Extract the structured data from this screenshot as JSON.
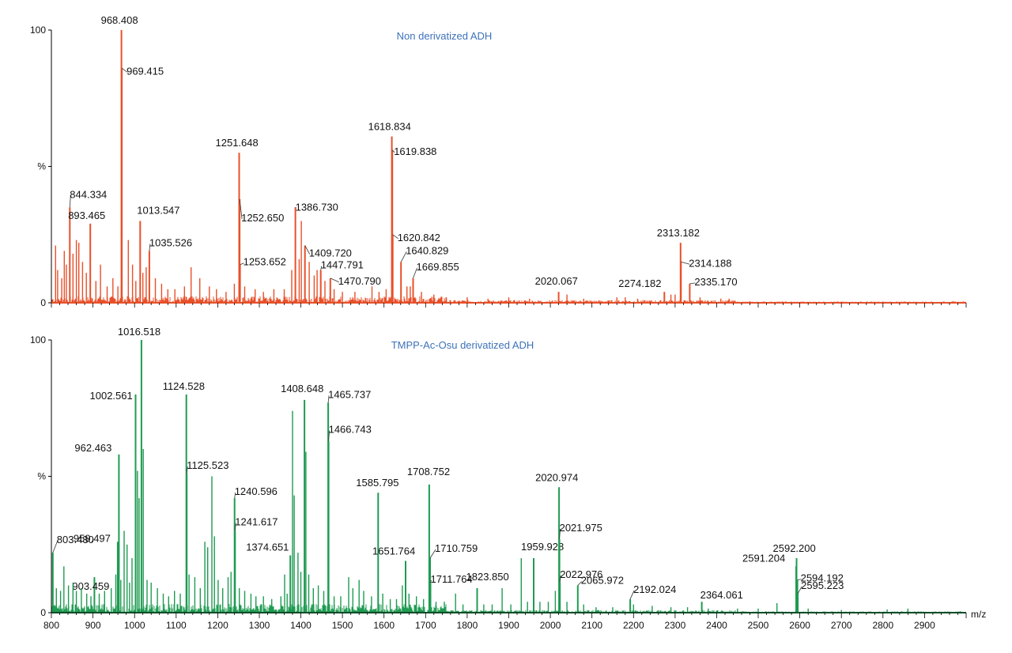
{
  "chart_data": {
    "type": "bar",
    "xlabel": "m/z",
    "xlim": [
      800,
      3000
    ],
    "x_ticks": [
      "800",
      "900",
      "1000",
      "1100",
      "1200",
      "1300",
      "1400",
      "1500",
      "1600",
      "1700",
      "1800",
      "1900",
      "2000",
      "2100",
      "2200",
      "2300",
      "2400",
      "2500",
      "2600",
      "2700",
      "2800",
      "2900"
    ],
    "colors": {
      "top": "#e8502a",
      "bottom": "#1f9b52",
      "title": "#3d72b8"
    },
    "panels": [
      {
        "title": "Non derivatized ADH",
        "ylim": [
          0,
          100
        ],
        "y_ticks": [
          "100",
          "%",
          "0"
        ],
        "peaks": [
          {
            "mz": 968.408,
            "intensity": 100,
            "label": "968.408"
          },
          {
            "mz": 969.415,
            "intensity": 86,
            "label": "969.415"
          },
          {
            "mz": 1251.648,
            "intensity": 55,
            "label": "1251.648"
          },
          {
            "mz": 1252.65,
            "intensity": 38,
            "label": "1252.650"
          },
          {
            "mz": 1253.652,
            "intensity": 14,
            "label": "1253.652"
          },
          {
            "mz": 1386.73,
            "intensity": 35,
            "label": "1386.730"
          },
          {
            "mz": 1409.72,
            "intensity": 21,
            "label": "1409.720"
          },
          {
            "mz": 1447.791,
            "intensity": 12,
            "label": "1447.791"
          },
          {
            "mz": 1470.79,
            "intensity": 9,
            "label": "1470.790"
          },
          {
            "mz": 1618.834,
            "intensity": 61,
            "label": "1618.834"
          },
          {
            "mz": 1619.838,
            "intensity": 56,
            "label": "1619.838"
          },
          {
            "mz": 1620.842,
            "intensity": 25,
            "label": "1620.842"
          },
          {
            "mz": 1640.829,
            "intensity": 15,
            "label": "1640.829"
          },
          {
            "mz": 1669.855,
            "intensity": 9,
            "label": "1669.855"
          },
          {
            "mz": 844.334,
            "intensity": 35,
            "label": "844.334"
          },
          {
            "mz": 893.465,
            "intensity": 29,
            "label": "893.465"
          },
          {
            "mz": 1013.547,
            "intensity": 30,
            "label": "1013.547"
          },
          {
            "mz": 1035.526,
            "intensity": 19,
            "label": "1035.526"
          },
          {
            "mz": 2020.067,
            "intensity": 4,
            "label": "2020.067"
          },
          {
            "mz": 2274.182,
            "intensity": 4,
            "label": "2274.182"
          },
          {
            "mz": 2313.182,
            "intensity": 22,
            "label": "2313.182"
          },
          {
            "mz": 2314.188,
            "intensity": 15,
            "label": "2314.188"
          },
          {
            "mz": 2335.17,
            "intensity": 7,
            "label": "2335.170"
          },
          {
            "mz": 810,
            "intensity": 21
          },
          {
            "mz": 815,
            "intensity": 12
          },
          {
            "mz": 825,
            "intensity": 9
          },
          {
            "mz": 831,
            "intensity": 19
          },
          {
            "mz": 836,
            "intensity": 14
          },
          {
            "mz": 852,
            "intensity": 18
          },
          {
            "mz": 860,
            "intensity": 23
          },
          {
            "mz": 866,
            "intensity": 22
          },
          {
            "mz": 875,
            "intensity": 15
          },
          {
            "mz": 884,
            "intensity": 11
          },
          {
            "mz": 907,
            "intensity": 8
          },
          {
            "mz": 918,
            "intensity": 14
          },
          {
            "mz": 934,
            "intensity": 6
          },
          {
            "mz": 948,
            "intensity": 9
          },
          {
            "mz": 960,
            "intensity": 6
          },
          {
            "mz": 985,
            "intensity": 23
          },
          {
            "mz": 995,
            "intensity": 14
          },
          {
            "mz": 1003,
            "intensity": 8
          },
          {
            "mz": 1020,
            "intensity": 11
          },
          {
            "mz": 1028,
            "intensity": 13
          },
          {
            "mz": 1050,
            "intensity": 9
          },
          {
            "mz": 1065,
            "intensity": 7
          },
          {
            "mz": 1080,
            "intensity": 5
          },
          {
            "mz": 1097,
            "intensity": 5
          },
          {
            "mz": 1120,
            "intensity": 6
          },
          {
            "mz": 1136,
            "intensity": 13
          },
          {
            "mz": 1157,
            "intensity": 9
          },
          {
            "mz": 1180,
            "intensity": 6
          },
          {
            "mz": 1197,
            "intensity": 5
          },
          {
            "mz": 1220,
            "intensity": 4
          },
          {
            "mz": 1240,
            "intensity": 7
          },
          {
            "mz": 1265,
            "intensity": 6
          },
          {
            "mz": 1290,
            "intensity": 5
          },
          {
            "mz": 1310,
            "intensity": 4
          },
          {
            "mz": 1335,
            "intensity": 5
          },
          {
            "mz": 1360,
            "intensity": 5
          },
          {
            "mz": 1378,
            "intensity": 12
          },
          {
            "mz": 1396,
            "intensity": 16
          },
          {
            "mz": 1401,
            "intensity": 30
          },
          {
            "mz": 1420,
            "intensity": 15
          },
          {
            "mz": 1432,
            "intensity": 10
          },
          {
            "mz": 1439,
            "intensity": 12
          },
          {
            "mz": 1458,
            "intensity": 8
          },
          {
            "mz": 1480,
            "intensity": 5
          },
          {
            "mz": 1500,
            "intensity": 4
          },
          {
            "mz": 1530,
            "intensity": 4
          },
          {
            "mz": 1571,
            "intensity": 6
          },
          {
            "mz": 1588,
            "intensity": 4
          },
          {
            "mz": 1605,
            "intensity": 5
          },
          {
            "mz": 1655,
            "intensity": 6
          },
          {
            "mz": 1663,
            "intensity": 6
          },
          {
            "mz": 1690,
            "intensity": 4
          },
          {
            "mz": 1720,
            "intensity": 3
          },
          {
            "mz": 1750,
            "intensity": 2
          },
          {
            "mz": 1800,
            "intensity": 2
          },
          {
            "mz": 1850,
            "intensity": 1.5
          },
          {
            "mz": 1900,
            "intensity": 2
          },
          {
            "mz": 1950,
            "intensity": 1.5
          },
          {
            "mz": 2040,
            "intensity": 3
          },
          {
            "mz": 2080,
            "intensity": 1.5
          },
          {
            "mz": 2160,
            "intensity": 2
          },
          {
            "mz": 2180,
            "intensity": 2
          },
          {
            "mz": 2210,
            "intensity": 1.5
          },
          {
            "mz": 2290,
            "intensity": 3
          },
          {
            "mz": 2300,
            "intensity": 3
          },
          {
            "mz": 2360,
            "intensity": 2
          },
          {
            "mz": 2410,
            "intensity": 1.5
          },
          {
            "mz": 2430,
            "intensity": 1.5
          }
        ]
      },
      {
        "title": "TMPP-Ac-Osu derivatized ADH",
        "ylim": [
          0,
          100
        ],
        "y_ticks": [
          "100",
          "%",
          "0"
        ],
        "peaks": [
          {
            "mz": 1016.518,
            "intensity": 100,
            "label": "1016.518"
          },
          {
            "mz": 1002.561,
            "intensity": 80,
            "label": "1002.561"
          },
          {
            "mz": 962.463,
            "intensity": 58,
            "label": "962.463"
          },
          {
            "mz": 959.497,
            "intensity": 26,
            "label": "959.497"
          },
          {
            "mz": 803.43,
            "intensity": 22,
            "label": "803.430"
          },
          {
            "mz": 903.459,
            "intensity": 13,
            "label": "903.459"
          },
          {
            "mz": 1124.528,
            "intensity": 80,
            "label": "1124.528"
          },
          {
            "mz": 1125.523,
            "intensity": 51,
            "label": "1125.523"
          },
          {
            "mz": 1240.596,
            "intensity": 42,
            "label": "1240.596"
          },
          {
            "mz": 1241.617,
            "intensity": 30,
            "label": "1241.617"
          },
          {
            "mz": 1374.651,
            "intensity": 21,
            "label": "1374.651"
          },
          {
            "mz": 1408.648,
            "intensity": 78,
            "label": "1408.648"
          },
          {
            "mz": 1465.737,
            "intensity": 77,
            "label": "1465.737"
          },
          {
            "mz": 1466.743,
            "intensity": 63,
            "label": "1466.743"
          },
          {
            "mz": 1585.795,
            "intensity": 44,
            "label": "1585.795"
          },
          {
            "mz": 1651.764,
            "intensity": 19,
            "label": "1651.764"
          },
          {
            "mz": 1708.752,
            "intensity": 47,
            "label": "1708.752"
          },
          {
            "mz": 1710.759,
            "intensity": 20,
            "label": "1710.759"
          },
          {
            "mz": 1711.764,
            "intensity": 11,
            "label": "1711.764"
          },
          {
            "mz": 1823.85,
            "intensity": 9,
            "label": "1823.850"
          },
          {
            "mz": 1959.928,
            "intensity": 20,
            "label": "1959.928"
          },
          {
            "mz": 2020.974,
            "intensity": 46,
            "label": "2020.974"
          },
          {
            "mz": 2021.975,
            "intensity": 27,
            "label": "2021.975"
          },
          {
            "mz": 2022.976,
            "intensity": 11,
            "label": "2022.976"
          },
          {
            "mz": 2065.972,
            "intensity": 10,
            "label": "2065.972"
          },
          {
            "mz": 2192.024,
            "intensity": 5,
            "label": "2192.024"
          },
          {
            "mz": 2364.061,
            "intensity": 4,
            "label": "2364.061"
          },
          {
            "mz": 2592.2,
            "intensity": 20,
            "label": "2592.200"
          },
          {
            "mz": 2591.204,
            "intensity": 17,
            "label": "2591.204"
          },
          {
            "mz": 2594.192,
            "intensity": 12,
            "label": "2594.192"
          },
          {
            "mz": 2595.223,
            "intensity": 7,
            "label": "2595.223"
          },
          {
            "mz": 812,
            "intensity": 9
          },
          {
            "mz": 822,
            "intensity": 8
          },
          {
            "mz": 830,
            "intensity": 17
          },
          {
            "mz": 841,
            "intensity": 10
          },
          {
            "mz": 852,
            "intensity": 11
          },
          {
            "mz": 860,
            "intensity": 8
          },
          {
            "mz": 872,
            "intensity": 9
          },
          {
            "mz": 885,
            "intensity": 7
          },
          {
            "mz": 895,
            "intensity": 6
          },
          {
            "mz": 915,
            "intensity": 7
          },
          {
            "mz": 928,
            "intensity": 8
          },
          {
            "mz": 944,
            "intensity": 9
          },
          {
            "mz": 955,
            "intensity": 14
          },
          {
            "mz": 967,
            "intensity": 12
          },
          {
            "mz": 975,
            "intensity": 30
          },
          {
            "mz": 982,
            "intensity": 25
          },
          {
            "mz": 988,
            "intensity": 11
          },
          {
            "mz": 994,
            "intensity": 20
          },
          {
            "mz": 1007,
            "intensity": 52
          },
          {
            "mz": 1011,
            "intensity": 42
          },
          {
            "mz": 1021,
            "intensity": 60
          },
          {
            "mz": 1030,
            "intensity": 12
          },
          {
            "mz": 1040,
            "intensity": 11
          },
          {
            "mz": 1055,
            "intensity": 9
          },
          {
            "mz": 1069,
            "intensity": 7
          },
          {
            "mz": 1082,
            "intensity": 6
          },
          {
            "mz": 1096,
            "intensity": 8
          },
          {
            "mz": 1110,
            "intensity": 7
          },
          {
            "mz": 1131,
            "intensity": 14
          },
          {
            "mz": 1145,
            "intensity": 13
          },
          {
            "mz": 1158,
            "intensity": 9
          },
          {
            "mz": 1169,
            "intensity": 26
          },
          {
            "mz": 1176,
            "intensity": 24
          },
          {
            "mz": 1186,
            "intensity": 50
          },
          {
            "mz": 1192,
            "intensity": 28
          },
          {
            "mz": 1201,
            "intensity": 12
          },
          {
            "mz": 1212,
            "intensity": 9
          },
          {
            "mz": 1225,
            "intensity": 13
          },
          {
            "mz": 1232,
            "intensity": 15
          },
          {
            "mz": 1252,
            "intensity": 9
          },
          {
            "mz": 1265,
            "intensity": 8
          },
          {
            "mz": 1280,
            "intensity": 7
          },
          {
            "mz": 1292,
            "intensity": 6
          },
          {
            "mz": 1310,
            "intensity": 6
          },
          {
            "mz": 1330,
            "intensity": 5
          },
          {
            "mz": 1352,
            "intensity": 6
          },
          {
            "mz": 1361,
            "intensity": 14
          },
          {
            "mz": 1367,
            "intensity": 7
          },
          {
            "mz": 1380,
            "intensity": 74
          },
          {
            "mz": 1384,
            "intensity": 43
          },
          {
            "mz": 1393,
            "intensity": 22
          },
          {
            "mz": 1400,
            "intensity": 15
          },
          {
            "mz": 1412,
            "intensity": 59
          },
          {
            "mz": 1419,
            "intensity": 14
          },
          {
            "mz": 1430,
            "intensity": 9
          },
          {
            "mz": 1442,
            "intensity": 10
          },
          {
            "mz": 1455,
            "intensity": 8
          },
          {
            "mz": 1480,
            "intensity": 6
          },
          {
            "mz": 1496,
            "intensity": 6
          },
          {
            "mz": 1515,
            "intensity": 13
          },
          {
            "mz": 1525,
            "intensity": 9
          },
          {
            "mz": 1540,
            "intensity": 12
          },
          {
            "mz": 1551,
            "intensity": 8
          },
          {
            "mz": 1570,
            "intensity": 6
          },
          {
            "mz": 1597,
            "intensity": 7
          },
          {
            "mz": 1615,
            "intensity": 5
          },
          {
            "mz": 1630,
            "intensity": 5
          },
          {
            "mz": 1644,
            "intensity": 10
          },
          {
            "mz": 1660,
            "intensity": 7
          },
          {
            "mz": 1678,
            "intensity": 6
          },
          {
            "mz": 1695,
            "intensity": 5
          },
          {
            "mz": 1725,
            "intensity": 4
          },
          {
            "mz": 1745,
            "intensity": 4
          },
          {
            "mz": 1772,
            "intensity": 7
          },
          {
            "mz": 1790,
            "intensity": 3
          },
          {
            "mz": 1840,
            "intensity": 3
          },
          {
            "mz": 1860,
            "intensity": 3
          },
          {
            "mz": 1884,
            "intensity": 9
          },
          {
            "mz": 1905,
            "intensity": 3
          },
          {
            "mz": 1930,
            "intensity": 20
          },
          {
            "mz": 1945,
            "intensity": 4
          },
          {
            "mz": 1975,
            "intensity": 4
          },
          {
            "mz": 1995,
            "intensity": 4
          },
          {
            "mz": 2012,
            "intensity": 8
          },
          {
            "mz": 2040,
            "intensity": 4
          },
          {
            "mz": 2080,
            "intensity": 3
          },
          {
            "mz": 2110,
            "intensity": 2
          },
          {
            "mz": 2150,
            "intensity": 2
          },
          {
            "mz": 2200,
            "intensity": 3
          },
          {
            "mz": 2245,
            "intensity": 2.5
          },
          {
            "mz": 2290,
            "intensity": 2
          },
          {
            "mz": 2330,
            "intensity": 2
          },
          {
            "mz": 2380,
            "intensity": 1.5
          },
          {
            "mz": 2450,
            "intensity": 1.5
          },
          {
            "mz": 2500,
            "intensity": 1.5
          },
          {
            "mz": 2545,
            "intensity": 3.5
          },
          {
            "mz": 2620,
            "intensity": 1.5
          },
          {
            "mz": 2700,
            "intensity": 1
          },
          {
            "mz": 2810,
            "intensity": 1.2
          },
          {
            "mz": 2860,
            "intensity": 1.5
          }
        ]
      }
    ]
  }
}
